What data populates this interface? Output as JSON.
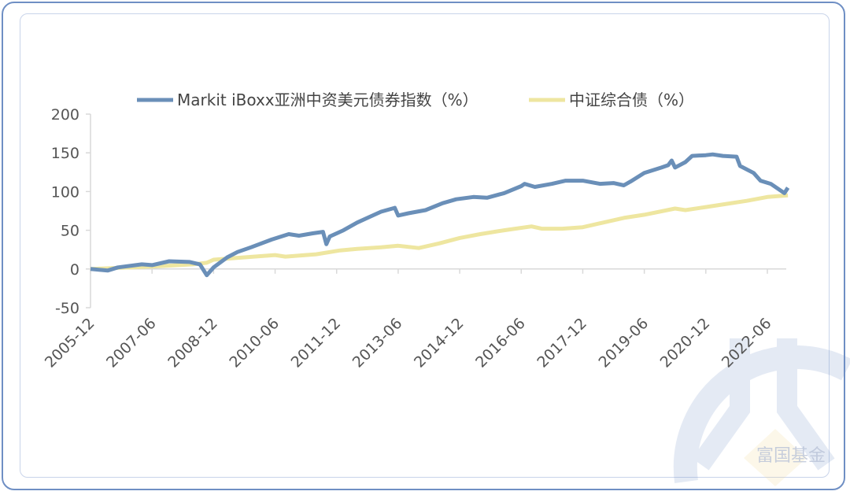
{
  "chart_data": {
    "type": "line",
    "title": "",
    "xlabel": "",
    "ylabel": "",
    "ylim": [
      -50,
      200
    ],
    "yticks": [
      -50,
      0,
      50,
      100,
      150,
      200
    ],
    "xticks": [
      "2005-12",
      "2007-06",
      "2008-12",
      "2010-06",
      "2011-12",
      "2013-06",
      "2014-12",
      "2016-06",
      "2017-12",
      "2019-06",
      "2020-12",
      "2022-06"
    ],
    "grid": false,
    "legend_position": "top",
    "series": [
      {
        "name": "Markit iBoxx亚洲中资美元债券指数（%）",
        "color": "#6a8fb8",
        "points": [
          [
            "2005-12",
            0
          ],
          [
            "2006-05",
            -2
          ],
          [
            "2006-08",
            2
          ],
          [
            "2007-03",
            6
          ],
          [
            "2007-06",
            5
          ],
          [
            "2007-11",
            10
          ],
          [
            "2008-05",
            9
          ],
          [
            "2008-08",
            6
          ],
          [
            "2008-10",
            -8
          ],
          [
            "2008-12",
            2
          ],
          [
            "2009-04",
            15
          ],
          [
            "2009-07",
            22
          ],
          [
            "2009-11",
            28
          ],
          [
            "2010-05",
            38
          ],
          [
            "2010-10",
            45
          ],
          [
            "2011-01",
            43
          ],
          [
            "2011-05",
            46
          ],
          [
            "2011-08",
            48
          ],
          [
            "2011-09",
            32
          ],
          [
            "2011-10",
            42
          ],
          [
            "2012-02",
            50
          ],
          [
            "2012-04",
            55
          ],
          [
            "2012-06",
            60
          ],
          [
            "2012-10",
            68
          ],
          [
            "2013-01",
            74
          ],
          [
            "2013-05",
            79
          ],
          [
            "2013-06",
            69
          ],
          [
            "2013-09",
            72
          ],
          [
            "2014-02",
            76
          ],
          [
            "2014-07",
            85
          ],
          [
            "2014-11",
            90
          ],
          [
            "2015-04",
            93
          ],
          [
            "2015-08",
            92
          ],
          [
            "2016-01",
            98
          ],
          [
            "2016-06",
            107
          ],
          [
            "2016-07",
            110
          ],
          [
            "2016-10",
            106
          ],
          [
            "2017-03",
            110
          ],
          [
            "2017-07",
            114
          ],
          [
            "2017-12",
            114
          ],
          [
            "2018-05",
            110
          ],
          [
            "2018-09",
            111
          ],
          [
            "2018-12",
            108
          ],
          [
            "2019-02",
            113
          ],
          [
            "2019-06",
            124
          ],
          [
            "2019-11",
            131
          ],
          [
            "2020-01",
            134
          ],
          [
            "2020-02",
            140
          ],
          [
            "2020-03",
            131
          ],
          [
            "2020-06",
            138
          ],
          [
            "2020-08",
            146
          ],
          [
            "2020-12",
            147
          ],
          [
            "2021-02",
            148
          ],
          [
            "2021-05",
            146
          ],
          [
            "2021-09",
            145
          ],
          [
            "2021-10",
            133
          ],
          [
            "2022-02",
            124
          ],
          [
            "2022-04",
            114
          ],
          [
            "2022-07",
            110
          ],
          [
            "2022-11",
            98
          ],
          [
            "2022-12",
            105
          ]
        ]
      },
      {
        "name": "中证综合债（%）",
        "color": "#eee6a0",
        "points": [
          [
            "2005-12",
            0
          ],
          [
            "2006-06",
            1
          ],
          [
            "2007-06",
            3
          ],
          [
            "2008-06",
            6
          ],
          [
            "2008-10",
            8
          ],
          [
            "2008-12",
            12
          ],
          [
            "2009-06",
            14
          ],
          [
            "2010-06",
            18
          ],
          [
            "2010-09",
            16
          ],
          [
            "2011-06",
            19
          ],
          [
            "2012-01",
            24
          ],
          [
            "2012-06",
            26
          ],
          [
            "2013-01",
            28
          ],
          [
            "2013-06",
            30
          ],
          [
            "2013-12",
            27
          ],
          [
            "2014-06",
            33
          ],
          [
            "2014-12",
            40
          ],
          [
            "2015-06",
            45
          ],
          [
            "2016-01",
            50
          ],
          [
            "2016-09",
            55
          ],
          [
            "2016-12",
            52
          ],
          [
            "2017-06",
            52
          ],
          [
            "2017-12",
            54
          ],
          [
            "2018-06",
            60
          ],
          [
            "2018-12",
            66
          ],
          [
            "2019-06",
            70
          ],
          [
            "2020-03",
            78
          ],
          [
            "2020-06",
            76
          ],
          [
            "2020-12",
            80
          ],
          [
            "2021-06",
            84
          ],
          [
            "2021-12",
            88
          ],
          [
            "2022-06",
            93
          ],
          [
            "2022-12",
            95
          ]
        ]
      }
    ]
  },
  "watermark": "富国基金"
}
